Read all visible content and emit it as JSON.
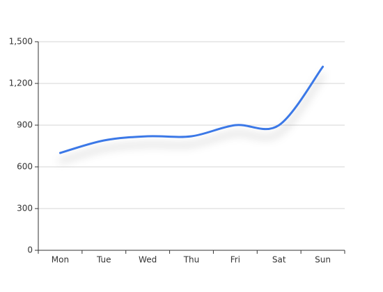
{
  "chart_data": {
    "type": "line",
    "categories": [
      "Mon",
      "Tue",
      "Wed",
      "Thu",
      "Fri",
      "Sat",
      "Sun"
    ],
    "values": [
      700,
      790,
      820,
      820,
      900,
      900,
      1320
    ],
    "color": "#3b78e7",
    "ylim": [
      0,
      1500
    ],
    "yticks": [
      0,
      300,
      600,
      900,
      {
        "value": 1200,
        "label": "1,200"
      },
      {
        "value": 1500,
        "label": "1,500"
      }
    ],
    "grid": true,
    "smooth": true,
    "shadow": true
  }
}
